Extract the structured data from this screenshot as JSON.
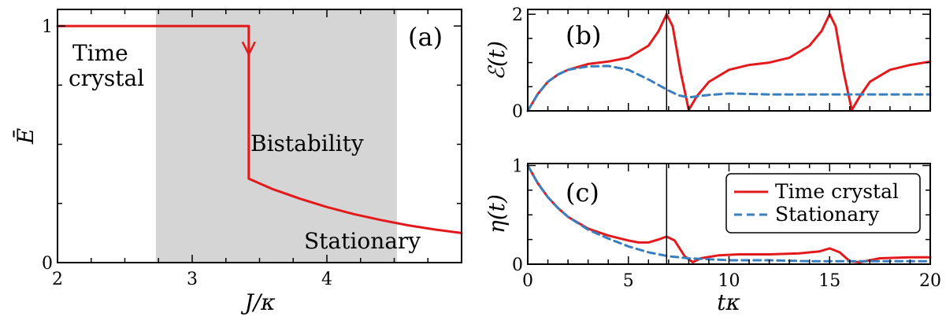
{
  "colors": {
    "time_crystal": "#e31a1c",
    "stationary": "#3a7fbd",
    "bistability_region": "#d5d5d5",
    "axis": "#000000"
  },
  "chart_data": [
    {
      "id": "panel-a",
      "type": "line",
      "panel_label": "(a)",
      "xlabel": "J/κ",
      "ylabel": "Ē",
      "xlim": [
        2,
        5
      ],
      "ylim": [
        0,
        1.07
      ],
      "x_ticks": [
        2,
        3,
        4
      ],
      "y_ticks": [
        0,
        1
      ],
      "shaded_region": {
        "x": [
          2.73,
          4.52
        ]
      },
      "region_labels": {
        "time_crystal": [
          "Time",
          "crystal"
        ],
        "bistability": "Bistability",
        "stationary": "Stationary"
      },
      "series": [
        {
          "style": "solid",
          "color_key": "time_crystal",
          "x": [
            2.0,
            3.42,
            3.42,
            3.6,
            3.8,
            4.0,
            4.2,
            4.4,
            4.6,
            4.8,
            5.0
          ],
          "y": [
            1.0,
            1.0,
            0.355,
            0.31,
            0.27,
            0.235,
            0.205,
            0.18,
            0.158,
            0.14,
            0.125
          ]
        }
      ],
      "arrow": {
        "x": 3.42,
        "y": 0.88,
        "direction": "down"
      }
    },
    {
      "id": "panel-b",
      "type": "line",
      "panel_label": "(b)",
      "xlabel": "",
      "ylabel": "ℰ(t)",
      "xlim": [
        0,
        20
      ],
      "ylim": [
        0,
        2.1
      ],
      "y_ticks": [
        0,
        2
      ],
      "vline_x": 6.9,
      "series": [
        {
          "name": "Time crystal",
          "style": "solid",
          "color_key": "time_crystal",
          "x": [
            0,
            0.5,
            1,
            1.5,
            2,
            3,
            4,
            5,
            6,
            6.5,
            6.9,
            7.2,
            7.6,
            8.0,
            8.4,
            9.0,
            10,
            11,
            12,
            13,
            14,
            14.6,
            15.0,
            15.3,
            15.7,
            16.1,
            16.5,
            17.0,
            18,
            19,
            20
          ],
          "y": [
            0,
            0.35,
            0.6,
            0.75,
            0.85,
            0.97,
            1.02,
            1.1,
            1.35,
            1.65,
            2.0,
            1.75,
            0.8,
            0.02,
            0.3,
            0.6,
            0.85,
            0.95,
            1.0,
            1.1,
            1.35,
            1.65,
            2.0,
            1.75,
            0.8,
            0.02,
            0.3,
            0.6,
            0.85,
            0.95,
            1.02
          ]
        },
        {
          "name": "Stationary",
          "style": "dashed",
          "color_key": "stationary",
          "x": [
            0,
            0.5,
            1,
            1.5,
            2,
            3,
            4,
            5,
            6,
            7,
            7.5,
            8,
            9,
            10,
            11,
            12,
            14,
            16,
            18,
            20
          ],
          "y": [
            0,
            0.35,
            0.6,
            0.75,
            0.85,
            0.92,
            0.93,
            0.85,
            0.65,
            0.42,
            0.32,
            0.28,
            0.33,
            0.36,
            0.35,
            0.34,
            0.34,
            0.34,
            0.34,
            0.34
          ]
        }
      ]
    },
    {
      "id": "panel-c",
      "type": "line",
      "panel_label": "(c)",
      "xlabel": "tκ",
      "ylabel": "η(t)",
      "xlim": [
        0,
        20
      ],
      "ylim": [
        0,
        1.02
      ],
      "x_ticks": [
        0,
        5,
        10,
        15,
        20
      ],
      "y_ticks": [
        0,
        1
      ],
      "vline_x": 6.9,
      "legend": {
        "position": "top-right"
      },
      "series": [
        {
          "name": "Time crystal",
          "style": "solid",
          "color_key": "time_crystal",
          "x": [
            0,
            0.5,
            1,
            1.5,
            2,
            3,
            4,
            5,
            5.5,
            6,
            6.5,
            6.9,
            7.3,
            7.8,
            8.2,
            8.6,
            9.5,
            10.5,
            12,
            13.5,
            14.5,
            15.0,
            15.5,
            16.0,
            16.5,
            17.5,
            19,
            20
          ],
          "y": [
            1.0,
            0.82,
            0.68,
            0.57,
            0.48,
            0.36,
            0.29,
            0.24,
            0.22,
            0.22,
            0.25,
            0.28,
            0.24,
            0.08,
            0.02,
            0.06,
            0.09,
            0.1,
            0.1,
            0.11,
            0.13,
            0.16,
            0.12,
            0.03,
            0.02,
            0.06,
            0.07,
            0.07
          ]
        },
        {
          "name": "Stationary",
          "style": "dashed",
          "color_key": "stationary",
          "x": [
            0,
            0.5,
            1,
            1.5,
            2,
            3,
            4,
            5,
            6,
            7,
            8,
            9,
            10,
            12,
            14,
            16,
            18,
            20
          ],
          "y": [
            1.0,
            0.82,
            0.68,
            0.57,
            0.48,
            0.35,
            0.26,
            0.18,
            0.12,
            0.08,
            0.06,
            0.05,
            0.04,
            0.04,
            0.03,
            0.03,
            0.03,
            0.03
          ]
        }
      ]
    }
  ]
}
